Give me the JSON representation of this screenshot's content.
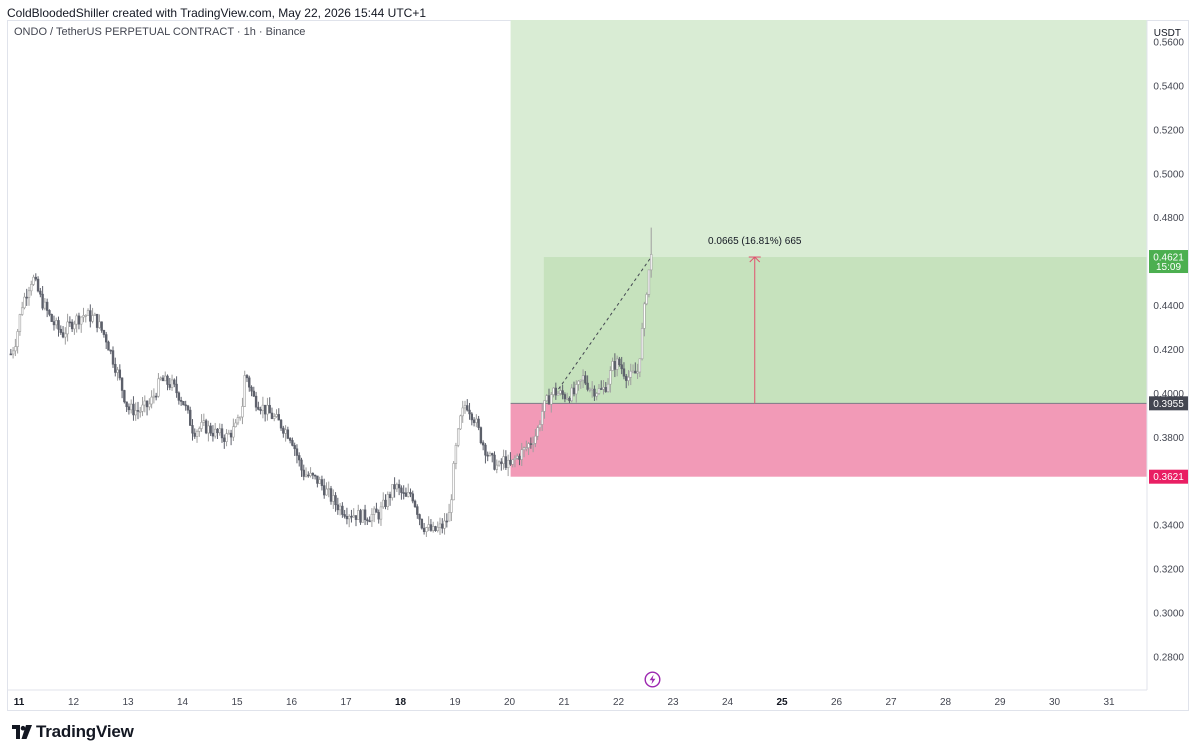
{
  "header": {
    "caption": "ColdBloodedShiller created with TradingView.com, May 22, 2026 15:44 UTC+1",
    "symbol_line": "ONDO / TetherUS PERPETUAL CONTRACT · 1h · Binance"
  },
  "footer": {
    "brand": "TradingView"
  },
  "colors": {
    "profit_zone": "#d9ecd4",
    "profit_filled": "#c6e2bd",
    "loss_zone": "#f29ab7",
    "candle_up": "#9e9e9e",
    "candle_down": "#5d606b",
    "arrow": "#e0516e",
    "entry_badge": "#434651",
    "target_badge": "#4caf50",
    "stop_badge": "#e91e63",
    "bolt": "#9c27b0"
  },
  "chart_data": {
    "type": "candlestick",
    "title": "ONDO / TetherUS PERPETUAL CONTRACT · 1h · Binance",
    "y_axis_unit": "USDT",
    "ylim": [
      0.265,
      0.57
    ],
    "y_ticks": [
      "0.5600",
      "0.5400",
      "0.5200",
      "0.5000",
      "0.4800",
      "0.4400",
      "0.4200",
      "0.4000",
      "0.3800",
      "0.3400",
      "0.3200",
      "0.3000",
      "0.2800"
    ],
    "x_ticks": [
      {
        "label": "11",
        "day": 11,
        "bold": true
      },
      {
        "label": "12",
        "day": 12,
        "bold": false
      },
      {
        "label": "13",
        "day": 13,
        "bold": false
      },
      {
        "label": "14",
        "day": 14,
        "bold": false
      },
      {
        "label": "15",
        "day": 15,
        "bold": false
      },
      {
        "label": "16",
        "day": 16,
        "bold": false
      },
      {
        "label": "17",
        "day": 17,
        "bold": false
      },
      {
        "label": "18",
        "day": 18,
        "bold": true
      },
      {
        "label": "19",
        "day": 19,
        "bold": false
      },
      {
        "label": "20",
        "day": 20,
        "bold": false
      },
      {
        "label": "21",
        "day": 21,
        "bold": false
      },
      {
        "label": "22",
        "day": 22,
        "bold": false
      },
      {
        "label": "23",
        "day": 23,
        "bold": false
      },
      {
        "label": "24",
        "day": 24,
        "bold": false
      },
      {
        "label": "25",
        "day": 25,
        "bold": true
      },
      {
        "label": "26",
        "day": 26,
        "bold": false
      },
      {
        "label": "27",
        "day": 27,
        "bold": false
      },
      {
        "label": "28",
        "day": 28,
        "bold": false
      },
      {
        "label": "29",
        "day": 29,
        "bold": false
      },
      {
        "label": "30",
        "day": 30,
        "bold": false
      },
      {
        "label": "31",
        "day": 31,
        "bold": false
      }
    ],
    "price_path": [
      [
        10.85,
        0.418
      ],
      [
        10.95,
        0.425
      ],
      [
        11.05,
        0.44
      ],
      [
        11.15,
        0.447
      ],
      [
        11.25,
        0.453
      ],
      [
        11.4,
        0.443
      ],
      [
        11.6,
        0.433
      ],
      [
        11.8,
        0.427
      ],
      [
        12.0,
        0.433
      ],
      [
        12.2,
        0.436
      ],
      [
        12.4,
        0.434
      ],
      [
        12.6,
        0.425
      ],
      [
        12.8,
        0.41
      ],
      [
        13.0,
        0.393
      ],
      [
        13.2,
        0.392
      ],
      [
        13.4,
        0.395
      ],
      [
        13.6,
        0.406
      ],
      [
        13.8,
        0.404
      ],
      [
        14.0,
        0.397
      ],
      [
        14.2,
        0.383
      ],
      [
        14.4,
        0.385
      ],
      [
        14.6,
        0.382
      ],
      [
        14.8,
        0.38
      ],
      [
        15.0,
        0.385
      ],
      [
        15.1,
        0.395
      ],
      [
        15.15,
        0.41
      ],
      [
        15.3,
        0.398
      ],
      [
        15.5,
        0.393
      ],
      [
        15.8,
        0.386
      ],
      [
        16.0,
        0.38
      ],
      [
        16.2,
        0.364
      ],
      [
        16.5,
        0.36
      ],
      [
        16.8,
        0.35
      ],
      [
        17.0,
        0.346
      ],
      [
        17.3,
        0.344
      ],
      [
        17.6,
        0.345
      ],
      [
        17.9,
        0.358
      ],
      [
        18.1,
        0.352
      ],
      [
        18.2,
        0.355
      ],
      [
        18.4,
        0.34
      ],
      [
        18.6,
        0.337
      ],
      [
        18.8,
        0.34
      ],
      [
        18.9,
        0.345
      ],
      [
        19.0,
        0.372
      ],
      [
        19.1,
        0.388
      ],
      [
        19.2,
        0.396
      ],
      [
        19.35,
        0.389
      ],
      [
        19.5,
        0.378
      ],
      [
        19.65,
        0.37
      ],
      [
        19.8,
        0.366
      ],
      [
        19.9,
        0.37
      ],
      [
        20.0,
        0.366
      ],
      [
        20.1,
        0.37
      ],
      [
        20.3,
        0.375
      ],
      [
        20.5,
        0.382
      ],
      [
        20.6,
        0.392
      ],
      [
        20.7,
        0.397
      ],
      [
        20.8,
        0.401
      ],
      [
        21.0,
        0.399
      ],
      [
        21.2,
        0.4
      ],
      [
        21.35,
        0.407
      ],
      [
        21.5,
        0.402
      ],
      [
        21.7,
        0.401
      ],
      [
        21.8,
        0.405
      ],
      [
        21.9,
        0.413
      ],
      [
        22.0,
        0.414
      ],
      [
        22.1,
        0.41
      ],
      [
        22.2,
        0.407
      ],
      [
        22.35,
        0.41
      ],
      [
        22.4,
        0.42
      ],
      [
        22.45,
        0.432
      ],
      [
        22.5,
        0.444
      ],
      [
        22.55,
        0.455
      ],
      [
        22.6,
        0.4621
      ]
    ],
    "long_position": {
      "entry": 0.3955,
      "target": 0.4621,
      "stop": 0.3621,
      "profit_zone_top": 0.57,
      "start_day": 20.02,
      "end_day": 31.7,
      "filled_from_day": 20.63,
      "measure_day": 24.5,
      "label": "0.0665 (16.81%) 665"
    },
    "price_badges": {
      "current_price": "0.4621",
      "countdown": "15:09",
      "entry_price": "0.3955",
      "stop_price": "0.3621"
    },
    "grid": false,
    "legend": "none"
  }
}
